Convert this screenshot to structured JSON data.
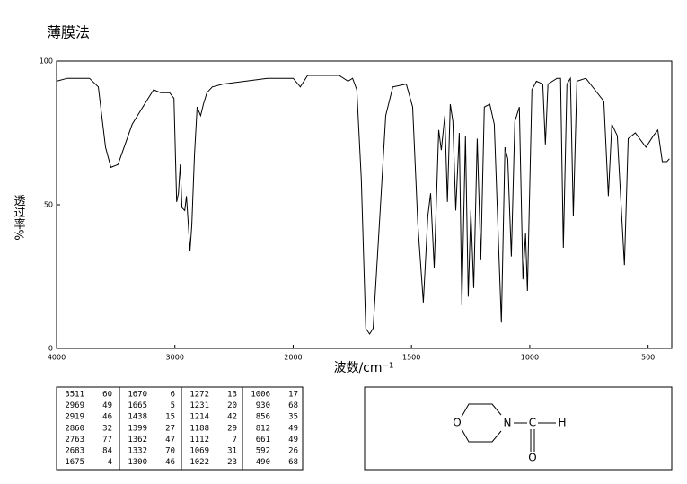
{
  "chart_data": {
    "type": "line",
    "title": "薄膜法",
    "x_label": "波数/cm⁻¹",
    "y_label": "透过率%",
    "x": [
      4000,
      3910,
      3722,
      3647,
      3586,
      3541,
      3481,
      3421,
      3361,
      3271,
      3180,
      3120,
      3045,
      3008,
      2985,
      2970,
      2955,
      2940,
      2917,
      2902,
      2872,
      2857,
      2835,
      2812,
      2782,
      2759,
      2729,
      2684,
      2594,
      2218,
      2000,
      1970,
      1939,
      1806,
      1768,
      1749,
      1731,
      1712,
      1693,
      1677,
      1662,
      1636,
      1609,
      1579,
      1522,
      1495,
      1473,
      1450,
      1431,
      1419,
      1404,
      1385,
      1374,
      1359,
      1348,
      1336,
      1325,
      1313,
      1298,
      1287,
      1272,
      1260,
      1249,
      1237,
      1222,
      1207,
      1192,
      1169,
      1150,
      1131,
      1120,
      1105,
      1093,
      1078,
      1063,
      1044,
      1029,
      1018,
      1010,
      991,
      972,
      945,
      934,
      923,
      885,
      870,
      858,
      843,
      828,
      816,
      801,
      763,
      725,
      687,
      668,
      653,
      630,
      600,
      584,
      554,
      509,
      478,
      459,
      440,
      421,
      410
    ],
    "values": [
      93,
      94,
      94,
      91,
      70,
      63,
      64,
      71,
      78,
      84,
      90,
      89,
      89,
      87,
      51,
      54,
      64,
      49,
      48,
      53,
      34,
      43,
      67,
      84,
      81,
      85,
      89,
      91,
      92,
      94,
      94,
      91,
      95,
      95,
      93,
      94,
      90,
      59,
      7,
      5,
      7,
      43,
      81,
      91,
      92,
      84,
      43,
      16,
      46,
      54,
      28,
      76,
      69,
      81,
      51,
      85,
      79,
      48,
      75,
      15,
      74,
      18,
      48,
      21,
      73,
      31,
      84,
      85,
      78,
      34,
      9,
      70,
      66,
      32,
      79,
      84,
      24,
      40,
      20,
      90,
      93,
      92,
      71,
      92,
      94,
      94,
      35,
      92,
      94,
      46,
      93,
      94,
      90,
      86,
      53,
      78,
      74,
      29,
      73,
      75,
      70,
      74,
      76,
      65,
      65,
      66
    ],
    "color": "#000000",
    "xlim": [
      4000,
      400
    ],
    "xticks": [
      4000,
      3000,
      2000,
      1500,
      1000,
      500
    ],
    "ylim": [
      0,
      100
    ],
    "yticks": [
      0,
      50,
      100
    ]
  },
  "peak_table": {
    "rows": [
      [
        3511,
        60,
        1670,
        6,
        1272,
        13,
        1006,
        17
      ],
      [
        2969,
        49,
        1665,
        5,
        1231,
        20,
        930,
        68
      ],
      [
        2919,
        46,
        1438,
        15,
        1214,
        42,
        856,
        35
      ],
      [
        2860,
        32,
        1399,
        27,
        1188,
        29,
        812,
        49
      ],
      [
        2763,
        77,
        1362,
        47,
        1112,
        7,
        661,
        49
      ],
      [
        2683,
        84,
        1332,
        70,
        1069,
        31,
        592,
        26
      ],
      [
        1675,
        4,
        1300,
        46,
        1022,
        23,
        490,
        68
      ]
    ]
  },
  "structure": {
    "atoms": [
      "O",
      "N",
      "C",
      "H",
      "O"
    ]
  }
}
